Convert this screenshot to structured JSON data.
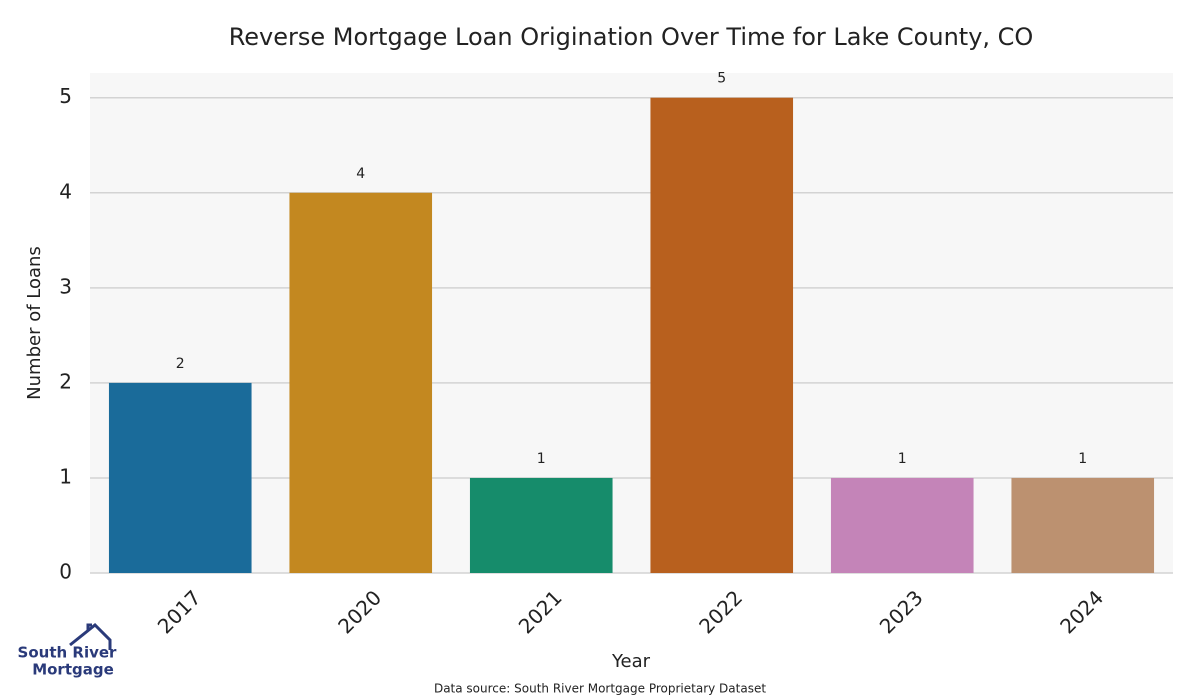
{
  "chart_data": {
    "type": "bar",
    "title": "Reverse Mortgage Loan Origination Over Time for Lake County, CO",
    "x_label": "Year",
    "y_label": "Number of Loans",
    "categories": [
      "2017",
      "2020",
      "2021",
      "2022",
      "2023",
      "2024"
    ],
    "values": [
      2,
      4,
      1,
      5,
      1,
      1
    ],
    "colors": [
      "#1a6b9a",
      "#c38820",
      "#168c6b",
      "#b8601e",
      "#c484b8",
      "#bc9170"
    ],
    "ylim": [
      0,
      5.26
    ],
    "yticks": [
      0,
      1,
      2,
      3,
      4,
      5
    ],
    "grid": true,
    "source": "Data source: South River Mortgage Proprietary Dataset"
  },
  "logo": [
    "South River",
    "Mortgage"
  ]
}
